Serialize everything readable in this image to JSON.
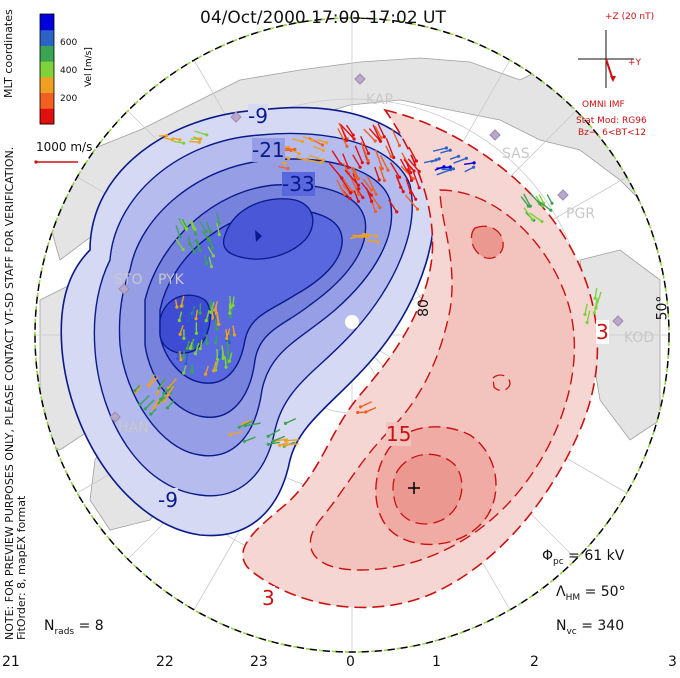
{
  "title": "04/Oct/2000 17:00–17:02 UT",
  "side_labels": {
    "coords": "MLT coordinates",
    "note_line1": "NOTE: FOR PREVIEW PURPOSES ONLY, PLEASE CONTACT VT-SD STAFF FOR VERIFICATION.",
    "note_line2": "FitOrder: 8, mapEX format"
  },
  "colorbar": {
    "title": "Vel [m/s]",
    "ticks": [
      "600",
      "400",
      "200"
    ],
    "colors": [
      "#0000dd",
      "#2a62c8",
      "#3aa455",
      "#7fd23a",
      "#f0a020",
      "#f06020",
      "#e01010"
    ]
  },
  "vector_scale_label": "1000 m/s",
  "imf": {
    "z_label": "+Z (20 nT)",
    "y_label": "+Y",
    "source": "OMNI IMF",
    "model_line1": "Stat Mod: RG96",
    "model_line2": "Bz−, 6<BT<12"
  },
  "lat_labels": [
    "80",
    "50°"
  ],
  "mlt_axis": [
    "21",
    "22",
    "23",
    "0",
    "1",
    "2",
    "3"
  ],
  "stations": [
    "KAP",
    "SAS",
    "PGR",
    "KOD",
    "STO",
    "PYK",
    "HAN"
  ],
  "contour_labels": {
    "negative": [
      "-9",
      "-21",
      "-33",
      "-9"
    ],
    "positive": [
      "15",
      "3",
      "3"
    ]
  },
  "stats": {
    "phi_pc_label": "Φ",
    "phi_pc_sub": "pc",
    "phi_pc_value": "= 61 kV",
    "lambda_label": "Λ",
    "lambda_sub": "HM",
    "lambda_value": "= 50°",
    "nvc_label": "N",
    "nvc_sub": "vc",
    "nvc_value": "= 340",
    "nrads_label": "N",
    "nrads_sub": "rads",
    "nrads_value": "= 8"
  },
  "palette": {
    "negative_fill": "#5a68e0",
    "positive_fill": "#f3b7b0",
    "negative_line": "#0a1a8a",
    "positive_line": "#cc1111",
    "land": "#d8d8d8"
  }
}
